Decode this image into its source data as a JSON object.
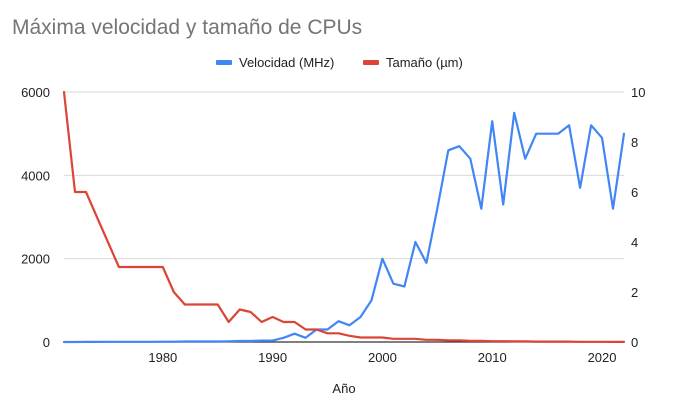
{
  "chart_data": {
    "type": "line",
    "title": "Máxima velocidad y tamaño de CPUs",
    "xlabel": "Año",
    "ylabel": "",
    "y2label": "",
    "xlim": [
      1971,
      2022
    ],
    "ylim": [
      0,
      6000
    ],
    "y2lim": [
      0,
      10
    ],
    "x_ticks": [
      1980,
      1990,
      2000,
      2010,
      2020
    ],
    "y_ticks": [
      0,
      2000,
      4000,
      6000
    ],
    "y2_ticks": [
      0,
      2,
      4,
      6,
      8,
      10
    ],
    "grid": true,
    "legend_position": "top",
    "series": [
      {
        "name": "Velocidad (MHz)",
        "axis": "left",
        "color": "#4285f4",
        "x": [
          1971,
          1972,
          1973,
          1974,
          1975,
          1976,
          1977,
          1978,
          1979,
          1980,
          1981,
          1982,
          1983,
          1984,
          1985,
          1986,
          1987,
          1988,
          1989,
          1990,
          1991,
          1992,
          1993,
          1994,
          1995,
          1996,
          1997,
          1998,
          1999,
          2000,
          2001,
          2002,
          2003,
          2004,
          2005,
          2006,
          2007,
          2008,
          2009,
          2010,
          2011,
          2012,
          2013,
          2014,
          2015,
          2016,
          2017,
          2018,
          2019,
          2020,
          2021,
          2022
        ],
        "values": [
          0.7,
          0.8,
          2,
          2,
          5,
          5,
          5,
          5,
          5,
          8,
          8,
          12,
          12,
          12,
          12,
          16,
          25,
          25,
          33,
          33,
          100,
          200,
          100,
          300,
          300,
          500,
          400,
          600,
          1000,
          2000,
          1400,
          1333,
          2400,
          1900,
          3200,
          4600,
          4700,
          4400,
          3200,
          5300,
          3300,
          5500,
          4400,
          5000,
          5000,
          5000,
          5200,
          3700,
          5200,
          4900,
          3200,
          5000
        ]
      },
      {
        "name": "Tamaño (µm)",
        "axis": "right",
        "color": "#db4437",
        "x": [
          1971,
          1972,
          1973,
          1974,
          1975,
          1976,
          1977,
          1978,
          1979,
          1980,
          1981,
          1982,
          1983,
          1984,
          1985,
          1986,
          1987,
          1988,
          1989,
          1990,
          1991,
          1992,
          1993,
          1994,
          1995,
          1996,
          1997,
          1998,
          1999,
          2000,
          2001,
          2002,
          2003,
          2004,
          2005,
          2006,
          2007,
          2008,
          2009,
          2010,
          2011,
          2012,
          2013,
          2014,
          2015,
          2016,
          2017,
          2018,
          2019,
          2020,
          2021,
          2022
        ],
        "values": [
          10,
          6,
          6,
          5,
          4,
          3,
          3,
          3,
          3,
          3,
          2,
          1.5,
          1.5,
          1.5,
          1.5,
          0.8,
          1.3,
          1.2,
          0.8,
          1,
          0.8,
          0.8,
          0.5,
          0.5,
          0.35,
          0.35,
          0.25,
          0.18,
          0.18,
          0.18,
          0.13,
          0.13,
          0.13,
          0.09,
          0.09,
          0.065,
          0.065,
          0.045,
          0.045,
          0.032,
          0.032,
          0.022,
          0.022,
          0.014,
          0.014,
          0.014,
          0.014,
          0.01,
          0.01,
          0.007,
          0.005,
          0.005
        ]
      }
    ]
  }
}
